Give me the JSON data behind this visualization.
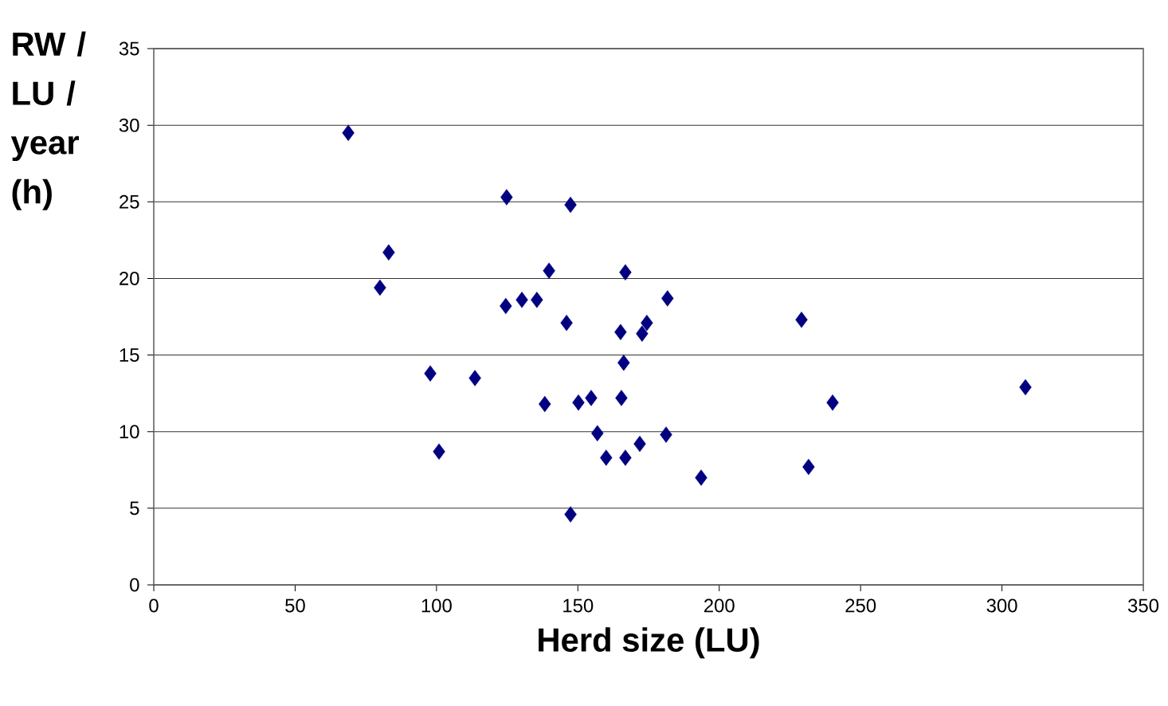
{
  "chart_data": {
    "type": "scatter",
    "xlabel": "Herd size (LU)",
    "ylabel": "RW / LU / year (h)",
    "x": [
      68.8,
      124.8,
      147.4,
      83.1,
      80.0,
      139.8,
      166.8,
      181.7,
      124.5,
      130.2,
      135.5,
      146.0,
      165.1,
      172.7,
      174.4,
      229.1,
      97.8,
      113.6,
      166.2,
      308.3,
      138.3,
      150.2,
      154.7,
      165.4,
      240.1,
      156.9,
      181.2,
      171.9,
      100.9,
      160.0,
      166.8,
      231.6,
      193.6,
      147.4
    ],
    "values": [
      29.5,
      25.3,
      24.8,
      21.7,
      19.4,
      20.5,
      20.4,
      18.7,
      18.2,
      18.6,
      18.6,
      17.1,
      16.5,
      16.4,
      17.1,
      17.3,
      13.8,
      13.5,
      14.5,
      12.9,
      11.8,
      11.9,
      12.2,
      12.2,
      11.9,
      9.9,
      9.8,
      9.2,
      8.7,
      8.3,
      8.3,
      7.7,
      7.0,
      4.6
    ],
    "color": "#000080",
    "marker": "diamond",
    "grid": "y",
    "xlim": [
      0,
      350
    ],
    "ylim": [
      0,
      35
    ],
    "xticks": [
      0,
      50,
      100,
      150,
      200,
      250,
      300,
      350
    ],
    "yticks": [
      0,
      5,
      10,
      15,
      20,
      25,
      30,
      35
    ]
  }
}
